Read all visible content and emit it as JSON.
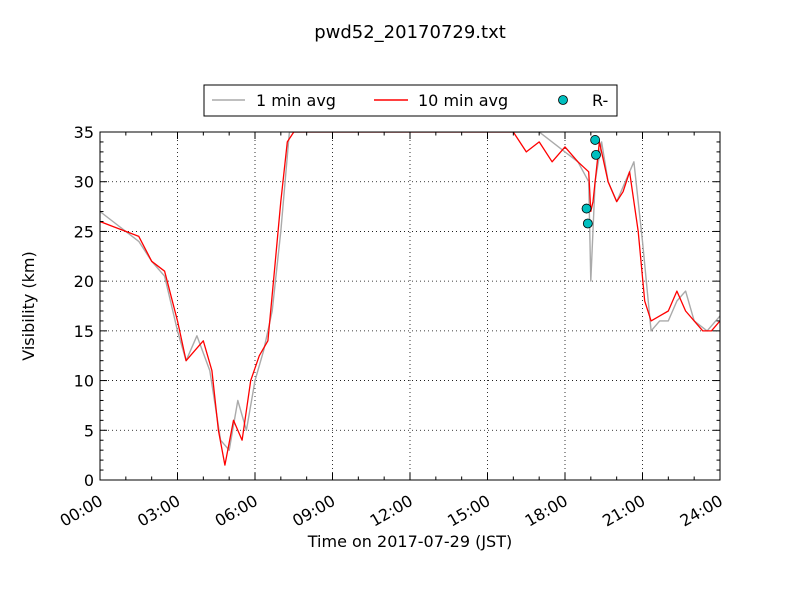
{
  "chart_data": {
    "type": "line",
    "title": "pwd52_20170729.txt",
    "xlabel": "Time on 2017-07-29 (JST)",
    "ylabel": "Visibility (km)",
    "xlim": [
      "00:00",
      "24:00"
    ],
    "ylim": [
      0,
      35
    ],
    "x_ticks": [
      "00:00",
      "03:00",
      "06:00",
      "09:00",
      "12:00",
      "15:00",
      "18:00",
      "21:00",
      "24:00"
    ],
    "y_ticks": [
      0,
      5,
      10,
      15,
      20,
      25,
      30,
      35
    ],
    "grid": true,
    "legend_position": "top-center",
    "series": [
      {
        "name": "1 min avg",
        "color": "#aaaaaa",
        "x": [
          "00:00",
          "00:30",
          "01:00",
          "01:30",
          "02:00",
          "02:30",
          "03:00",
          "03:20",
          "03:45",
          "04:15",
          "04:40",
          "05:00",
          "05:20",
          "05:40",
          "06:00",
          "06:20",
          "06:40",
          "07:00",
          "07:20",
          "07:40",
          "08:00",
          "09:00",
          "10:00",
          "11:00",
          "12:00",
          "13:00",
          "14:00",
          "15:00",
          "16:00",
          "17:00",
          "18:00",
          "18:30",
          "18:55",
          "19:00",
          "19:10",
          "19:25",
          "19:40",
          "20:00",
          "20:20",
          "20:40",
          "21:00",
          "21:20",
          "21:40",
          "22:00",
          "22:20",
          "22:40",
          "23:00",
          "23:30",
          "24:00"
        ],
        "values": [
          27,
          26,
          25,
          24,
          22,
          20.5,
          15,
          12,
          14.5,
          11,
          4,
          3,
          8,
          5,
          10,
          13,
          17,
          25,
          35,
          35,
          35,
          35,
          35,
          35,
          35,
          35,
          35,
          35,
          35,
          35,
          33,
          32,
          30,
          20,
          30,
          34,
          30,
          28,
          30,
          32,
          24,
          15,
          16,
          16,
          18,
          19,
          16,
          15,
          16.5
        ]
      },
      {
        "name": "10 min avg",
        "color": "#ff0000",
        "x": [
          "00:00",
          "00:30",
          "01:00",
          "01:30",
          "02:00",
          "02:30",
          "03:00",
          "03:20",
          "03:40",
          "04:00",
          "04:20",
          "04:35",
          "04:50",
          "05:10",
          "05:30",
          "05:50",
          "06:10",
          "06:30",
          "06:45",
          "07:00",
          "07:15",
          "07:30",
          "08:00",
          "09:00",
          "10:00",
          "11:00",
          "12:00",
          "13:00",
          "14:00",
          "15:00",
          "16:00",
          "16:30",
          "17:00",
          "17:30",
          "18:00",
          "18:30",
          "18:55",
          "19:00",
          "19:05",
          "19:20",
          "19:40",
          "20:00",
          "20:15",
          "20:30",
          "20:50",
          "21:05",
          "21:20",
          "21:40",
          "22:00",
          "22:20",
          "22:40",
          "23:00",
          "23:20",
          "23:40",
          "24:00"
        ],
        "values": [
          26,
          25.5,
          25,
          24.5,
          22,
          21,
          16,
          12,
          13,
          14,
          11,
          5,
          1.5,
          6,
          4,
          10,
          12.5,
          14,
          21,
          28,
          34,
          35,
          35,
          35,
          35,
          35,
          35,
          35,
          35,
          35,
          35,
          33,
          34,
          32,
          33.5,
          32,
          31,
          27,
          28,
          34,
          30,
          28,
          29,
          31,
          25,
          18,
          16,
          16.5,
          17,
          19,
          17,
          16,
          15,
          15,
          16
        ]
      },
      {
        "name": "R-",
        "color": "#00bfbf",
        "marker": "circle",
        "x": [
          "18:50",
          "18:53",
          "19:10",
          "19:12"
        ],
        "values": [
          27.3,
          25.8,
          34.2,
          32.7
        ]
      }
    ]
  }
}
